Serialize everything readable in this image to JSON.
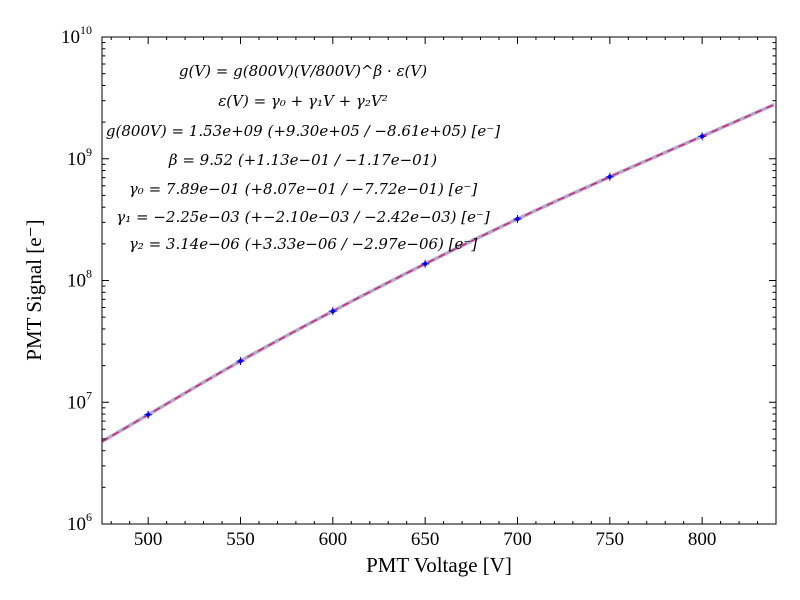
{
  "chart_data": {
    "type": "scatter",
    "title": "",
    "xlabel": "PMT Voltage [V]",
    "ylabel": "PMT Signal [e⁻]",
    "xlim": [
      475,
      840
    ],
    "ylim": [
      1000000,
      10000000000
    ],
    "yscale": "log",
    "x_ticks": [
      500,
      550,
      600,
      650,
      700,
      750,
      800
    ],
    "x_tick_labels": [
      "500",
      "550",
      "600",
      "650",
      "700",
      "750",
      "800"
    ],
    "y_ticks": [
      {
        "value": 1000000,
        "base": "10",
        "exp": "6"
      },
      {
        "value": 10000000,
        "base": "10",
        "exp": "7"
      },
      {
        "value": 100000000,
        "base": "10",
        "exp": "8"
      },
      {
        "value": 1000000000,
        "base": "10",
        "exp": "9"
      },
      {
        "value": 10000000000,
        "base": "10",
        "exp": "10"
      }
    ],
    "grid": false,
    "series": [
      {
        "kind": "points",
        "color": "#0000ff",
        "x": [
          500,
          550,
          600,
          650,
          700,
          750,
          800
        ],
        "y": [
          7900000,
          21800000,
          56000000,
          137000000,
          320000000,
          710000000,
          1530000000
        ]
      }
    ],
    "fit_curve_colors": {
      "band": "#b7a8cc",
      "dashed": "#cc2277"
    },
    "annotations": [
      "g(V) = g(800V)(V/800V)^β · ε(V)",
      "ε(V) = γ₀ + γ₁V + γ₂V²",
      "g(800V) = 1.53e+09 (+9.30e+05 / −8.61e+05) [e⁻]",
      "β = 9.52 (+1.13e−01 / −1.17e−01)",
      "γ₀ = 7.89e−01 (+8.07e−01 / −7.72e−01) [e⁻]",
      "γ₁ = −2.25e−03 (+−2.10e−03 / −2.42e−03) [e⁻]",
      "γ₂ = 3.14e−06 (+3.33e−06 / −2.97e−06) [e⁻]"
    ]
  }
}
